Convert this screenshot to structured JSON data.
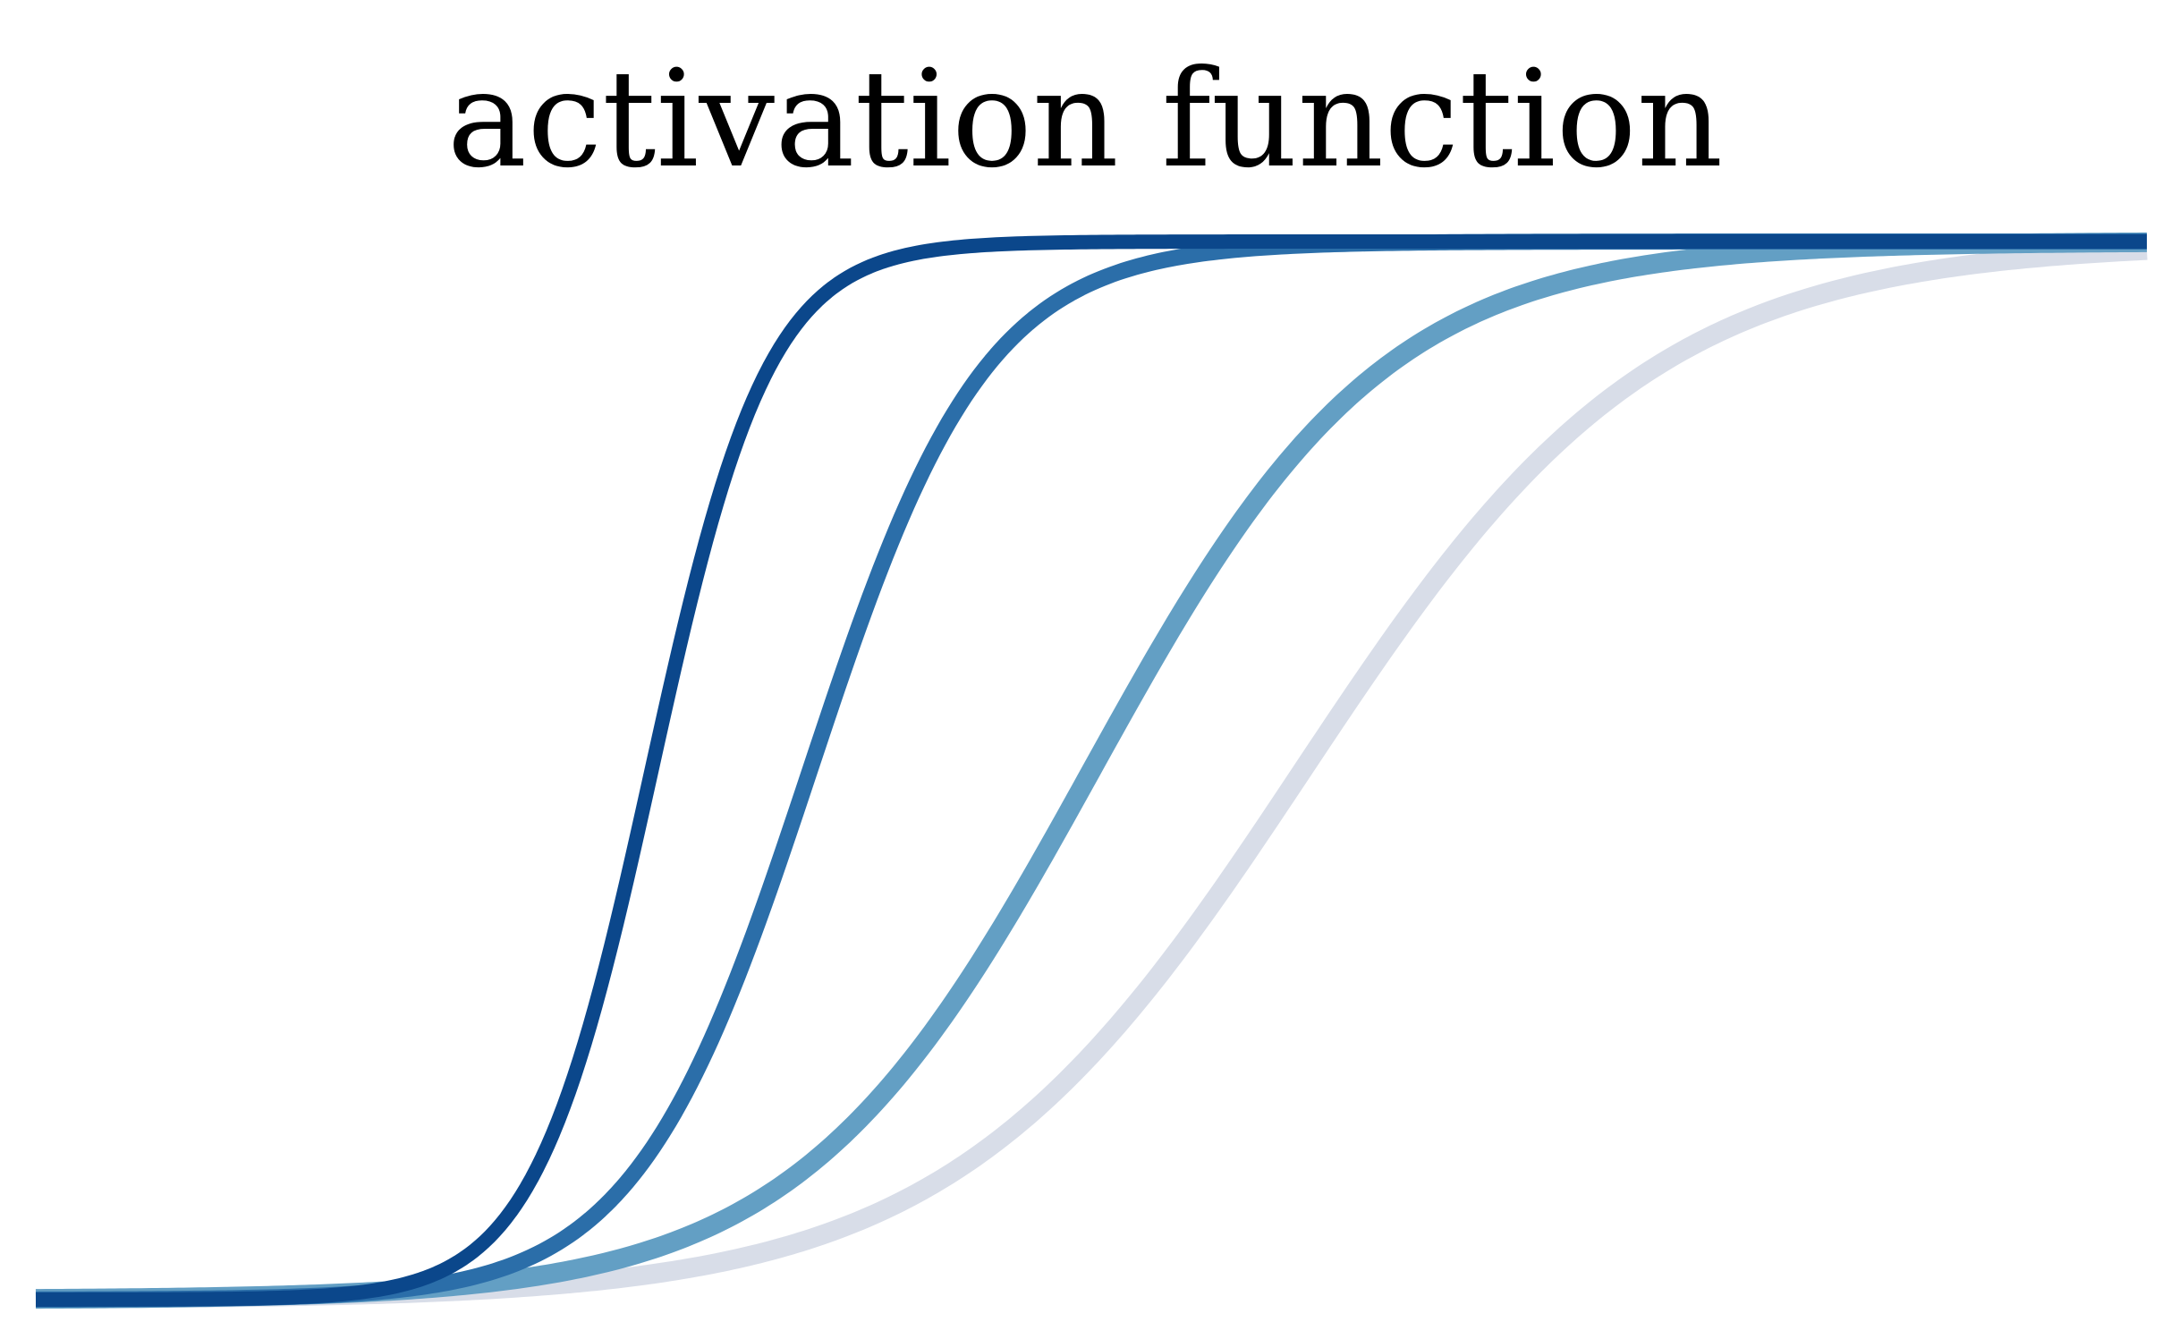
{
  "chart_data": {
    "type": "line",
    "title": "activation function",
    "xlabel": "",
    "ylabel": "",
    "xlim": [
      -6,
      6
    ],
    "ylim": [
      0,
      1
    ],
    "grid": false,
    "legend": "none",
    "series": [
      {
        "color": "#d8dde8",
        "shape": "sigmoid",
        "steepness": 1.0,
        "midpoint": 1.2
      },
      {
        "color": "#639fc4",
        "shape": "sigmoid",
        "steepness": 1.2,
        "midpoint": 0.0
      },
      {
        "color": "#2b6ea9",
        "shape": "sigmoid",
        "steepness": 2.0,
        "midpoint": -1.6
      },
      {
        "color": "#0b478b",
        "shape": "sigmoid",
        "steepness": 3.0,
        "midpoint": -2.5
      }
    ]
  }
}
